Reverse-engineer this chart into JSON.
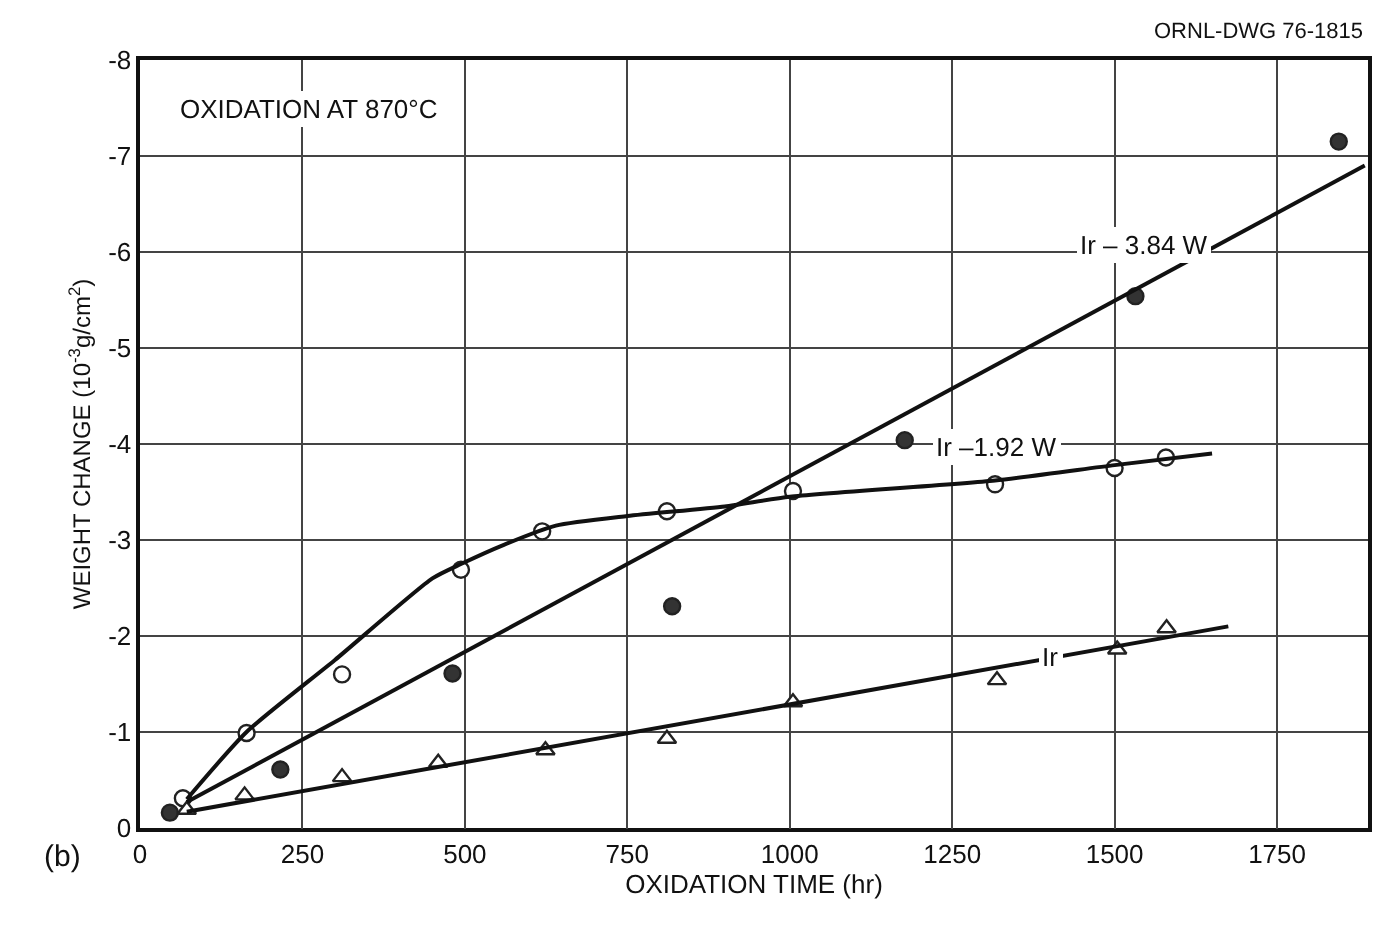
{
  "chart_data": {
    "type": "scatter",
    "xlabel": "OXIDATION TIME (hr)",
    "ylabel": "WEIGHT CHANGE (10$^{-3}$g/cm$^{2}$)",
    "xlim": [
      0,
      1890
    ],
    "xticks": [
      0,
      250,
      500,
      750,
      1000,
      1250,
      1500,
      1750
    ],
    "ylim": [
      0,
      -8
    ],
    "yticks": [
      0,
      -1,
      -2,
      -3,
      -4,
      -5,
      -6,
      -7,
      -8
    ],
    "grid": true,
    "series": [
      {
        "marker": "circle",
        "color": "#ffffff",
        "x": [
          66,
          164,
          311,
          494,
          619,
          811,
          1005,
          1316,
          1500,
          1579
        ],
        "values": [
          -0.31,
          -0.99,
          -1.6,
          -2.69,
          -3.09,
          -3.3,
          -3.51,
          -3.58,
          -3.75,
          -3.86
        ]
      },
      {
        "marker": "circle",
        "color": "#333333",
        "x": [
          46,
          216,
          481,
          819,
          1177,
          1532,
          1845
        ],
        "values": [
          -0.16,
          -0.61,
          -1.61,
          -2.31,
          -4.04,
          -5.54,
          -7.15
        ]
      },
      {
        "marker": "triangle",
        "color": "#ffffff",
        "x": [
          72,
          161,
          311,
          459,
          624,
          811,
          1005,
          1319,
          1504,
          1580
        ],
        "values": [
          -0.19,
          -0.34,
          -0.53,
          -0.68,
          -0.81,
          -0.93,
          -1.31,
          -1.54,
          -1.86,
          -2.08
        ]
      },
      {
        "type": "line",
        "name": "Ir – 3.84 W",
        "color": "#111111",
        "x": [
          72,
          1885
        ],
        "values": [
          -0.27,
          -6.9
        ]
      },
      {
        "type": "line",
        "name": "Ir –1.92 W",
        "color": "#111111",
        "x": [
          72,
          164,
          300,
          450,
          494,
          560,
          640,
          750,
          900,
          1000,
          1316,
          1500,
          1650
        ],
        "values": [
          -0.3,
          -1.0,
          -1.75,
          -2.6,
          -2.75,
          -2.95,
          -3.15,
          -3.25,
          -3.35,
          -3.45,
          -3.62,
          -3.78,
          -3.9
        ]
      },
      {
        "type": "line",
        "name": "Ir",
        "color": "#111111",
        "x": [
          72,
          1675
        ],
        "values": [
          -0.17,
          -2.1
        ]
      }
    ],
    "annotations": [
      "OXIDATION AT 870°C",
      "ORNL-DWG 76-1815",
      "(b)"
    ]
  }
}
